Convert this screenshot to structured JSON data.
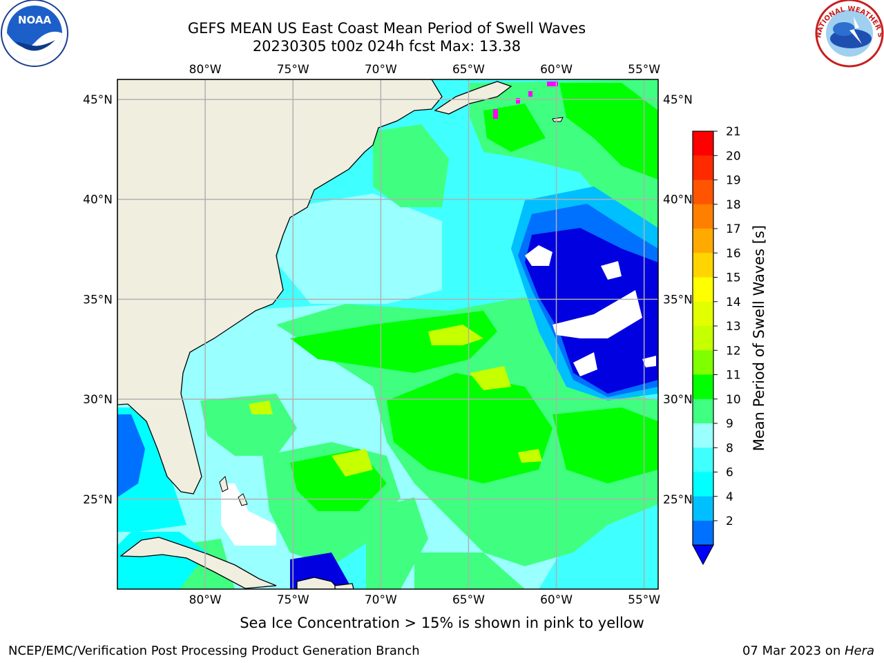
{
  "title_line1": "GEFS MEAN US East Coast Mean Period of Swell Waves",
  "title_line2": "20230305 t00z 024h fcst   Max: 13.38",
  "map": {
    "lon_labels": [
      "80°W",
      "75°W",
      "70°W",
      "65°W",
      "60°W",
      "55°W"
    ],
    "lat_labels": [
      "45°N",
      "40°N",
      "35°N",
      "30°N",
      "25°N"
    ],
    "lon_values": [
      -80,
      -75,
      -70,
      -65,
      -60,
      -55
    ],
    "lat_values": [
      45,
      40,
      35,
      30,
      25
    ],
    "extent": {
      "lon_min": -85,
      "lon_max": -54.2,
      "lat_min": 20.5,
      "lat_max": 46
    }
  },
  "colorbar": {
    "label": "Mean Period of Swell Waves [s]",
    "ticks": [
      "21",
      "20",
      "19",
      "18",
      "17",
      "16",
      "15",
      "14",
      "13",
      "12",
      "11",
      "10",
      "9",
      "8",
      "6",
      "4",
      "2"
    ],
    "colors": [
      "#ff0000",
      "#ff2a00",
      "#ff5500",
      "#ff7f00",
      "#ffaa00",
      "#ffd400",
      "#ffff00",
      "#e2ff00",
      "#c6ff00",
      "#7fff00",
      "#00ff00",
      "#40ff80",
      "#99ffff",
      "#40ffff",
      "#00ffff",
      "#00bfff",
      "#0070ff"
    ],
    "extend_color": "#0000ff"
  },
  "colors": {
    "land": "#efeedf",
    "very_low": "#0000e0",
    "low": "#0070ff",
    "cyan": "#00ffff",
    "light_cyan": "#99ffff",
    "mint": "#40ff80",
    "green": "#00ff00",
    "yellow_green": "#c6ff00",
    "ice": "#ff00ff"
  },
  "caption": "Sea Ice Concentration > 15% is shown in pink to yellow",
  "footer_left": "NCEP/EMC/Verification Post Processing Product Generation Branch",
  "footer_date": "07 Mar 2023 on ",
  "footer_host": "Hera",
  "logos": {
    "noaa": "NOAA",
    "nws_text": "NATIONAL WEATHER SERVICE"
  }
}
